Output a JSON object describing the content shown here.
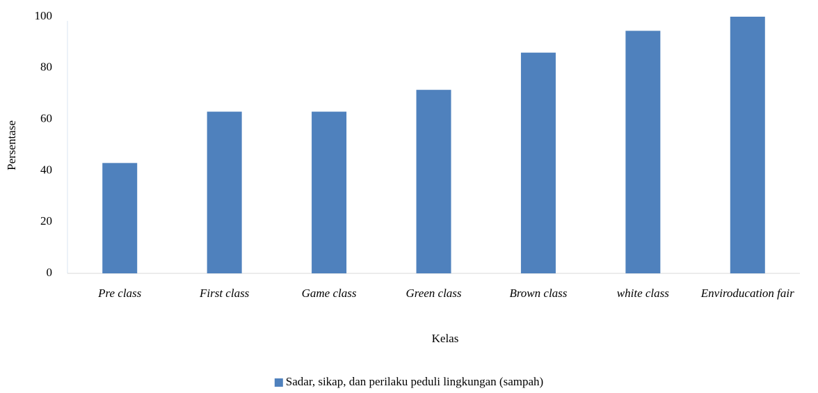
{
  "chart_data": {
    "type": "bar",
    "categories": [
      "Pre class",
      "First class",
      "Game class",
      "Green class",
      "Brown class",
      "white class",
      "Enviroducation fair"
    ],
    "series": [
      {
        "name": "Sadar, sikap, dan perilaku peduli lingkungan (sampah)",
        "color": "#4f81bd",
        "values": [
          43,
          63,
          63,
          71.5,
          86,
          94.5,
          100
        ]
      }
    ],
    "xlabel": "Kelas",
    "ylabel": "Persentase",
    "ylim": [
      0,
      100
    ],
    "yticks": [
      0,
      20,
      40,
      60,
      80,
      100
    ],
    "grid": false,
    "legend": "bottom"
  }
}
